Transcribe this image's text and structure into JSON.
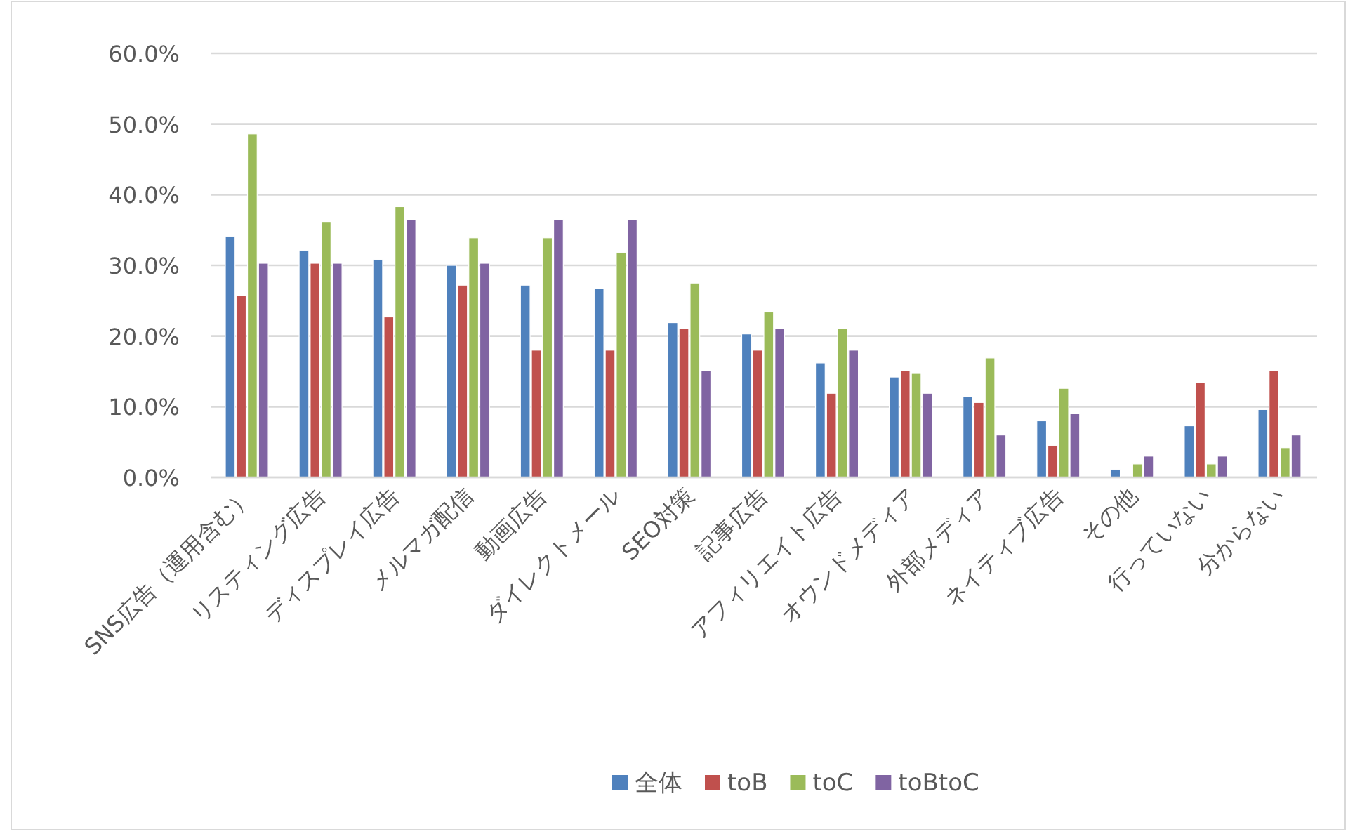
{
  "chart_data": {
    "type": "bar",
    "categories": [
      "SNS広告（運用含む）",
      "リスティング広告",
      "ディスプレイ広告",
      "メルマガ配信",
      "動画広告",
      "ダイレクトメール",
      "SEO対策",
      "記事広告",
      "アフィリエイト広告",
      "オウンドメディア",
      "外部メディア",
      "ネイティブ広告",
      "その他",
      "行っていない",
      "分からない"
    ],
    "series": [
      {
        "name": "全体",
        "color": "#4f81bd",
        "values": [
          34.1,
          32.1,
          30.8,
          30.0,
          27.2,
          26.7,
          21.9,
          20.3,
          16.2,
          14.2,
          11.4,
          8.0,
          1.1,
          7.3,
          9.6
        ]
      },
      {
        "name": "toB",
        "color": "#c0504d",
        "values": [
          25.7,
          30.3,
          22.7,
          27.2,
          18.0,
          18.0,
          21.1,
          18.0,
          11.9,
          15.1,
          10.6,
          4.5,
          0,
          13.4,
          15.1
        ]
      },
      {
        "name": "toC",
        "color": "#9bbb59",
        "values": [
          48.6,
          36.2,
          38.3,
          33.9,
          33.9,
          31.8,
          27.5,
          23.4,
          21.1,
          14.7,
          16.9,
          12.6,
          1.9,
          1.9,
          4.2
        ]
      },
      {
        "name": "toBtoC",
        "color": "#8064a2",
        "values": [
          30.3,
          30.3,
          36.5,
          30.3,
          36.5,
          36.5,
          15.1,
          21.1,
          18.0,
          11.9,
          6.0,
          9.0,
          3.0,
          3.0,
          6.0
        ]
      }
    ],
    "ylim": [
      0,
      60
    ],
    "yticks": [
      {
        "value": 0,
        "label": "0.0%"
      },
      {
        "value": 10,
        "label": "10.0%"
      },
      {
        "value": 20,
        "label": "20.0%"
      },
      {
        "value": 30,
        "label": "30.0%"
      },
      {
        "value": 40,
        "label": "40.0%"
      },
      {
        "value": 50,
        "label": "50.0%"
      },
      {
        "value": 60,
        "label": "60.0%"
      }
    ],
    "grid": "y",
    "legend": "bottom"
  }
}
